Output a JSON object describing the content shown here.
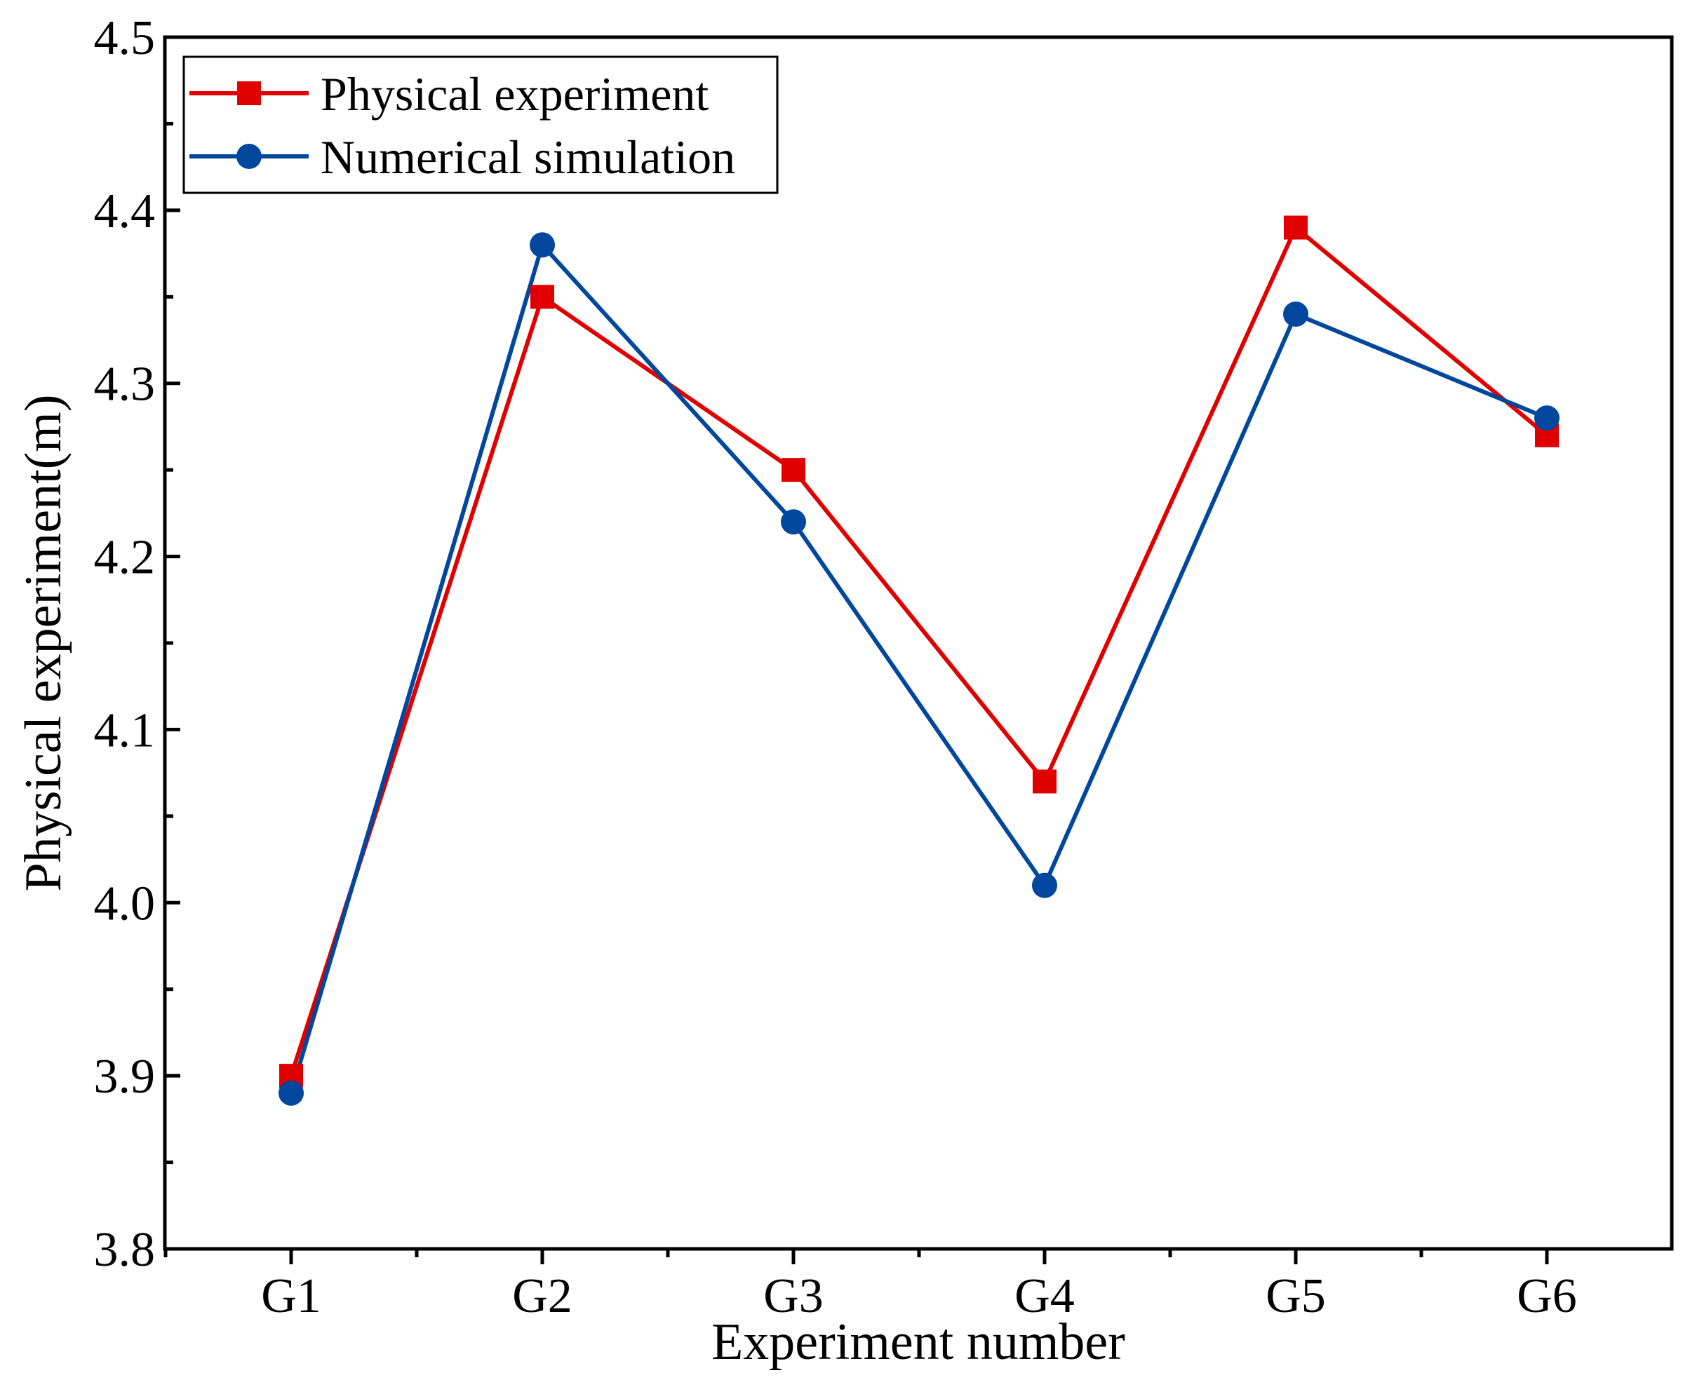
{
  "chart_data": {
    "type": "line",
    "title": "",
    "xlabel": "Experiment number",
    "ylabel": "Physical experiment(m)",
    "categories": [
      "G1",
      "G2",
      "G3",
      "G4",
      "G5",
      "G6"
    ],
    "ylim": [
      3.8,
      4.5
    ],
    "yticks": [
      "3.8",
      "3.9",
      "4.0",
      "4.1",
      "4.2",
      "4.3",
      "4.4",
      "4.5"
    ],
    "grid": false,
    "legend_position": "top-left",
    "series": [
      {
        "name": "Physical experiment",
        "values": [
          3.9,
          4.35,
          4.25,
          4.07,
          4.39,
          4.27
        ],
        "color": "#e00000",
        "marker": "square"
      },
      {
        "name": "Numerical simulation",
        "values": [
          3.89,
          4.38,
          4.22,
          4.01,
          4.34,
          4.28
        ],
        "color": "#00479d",
        "marker": "circle"
      }
    ]
  }
}
